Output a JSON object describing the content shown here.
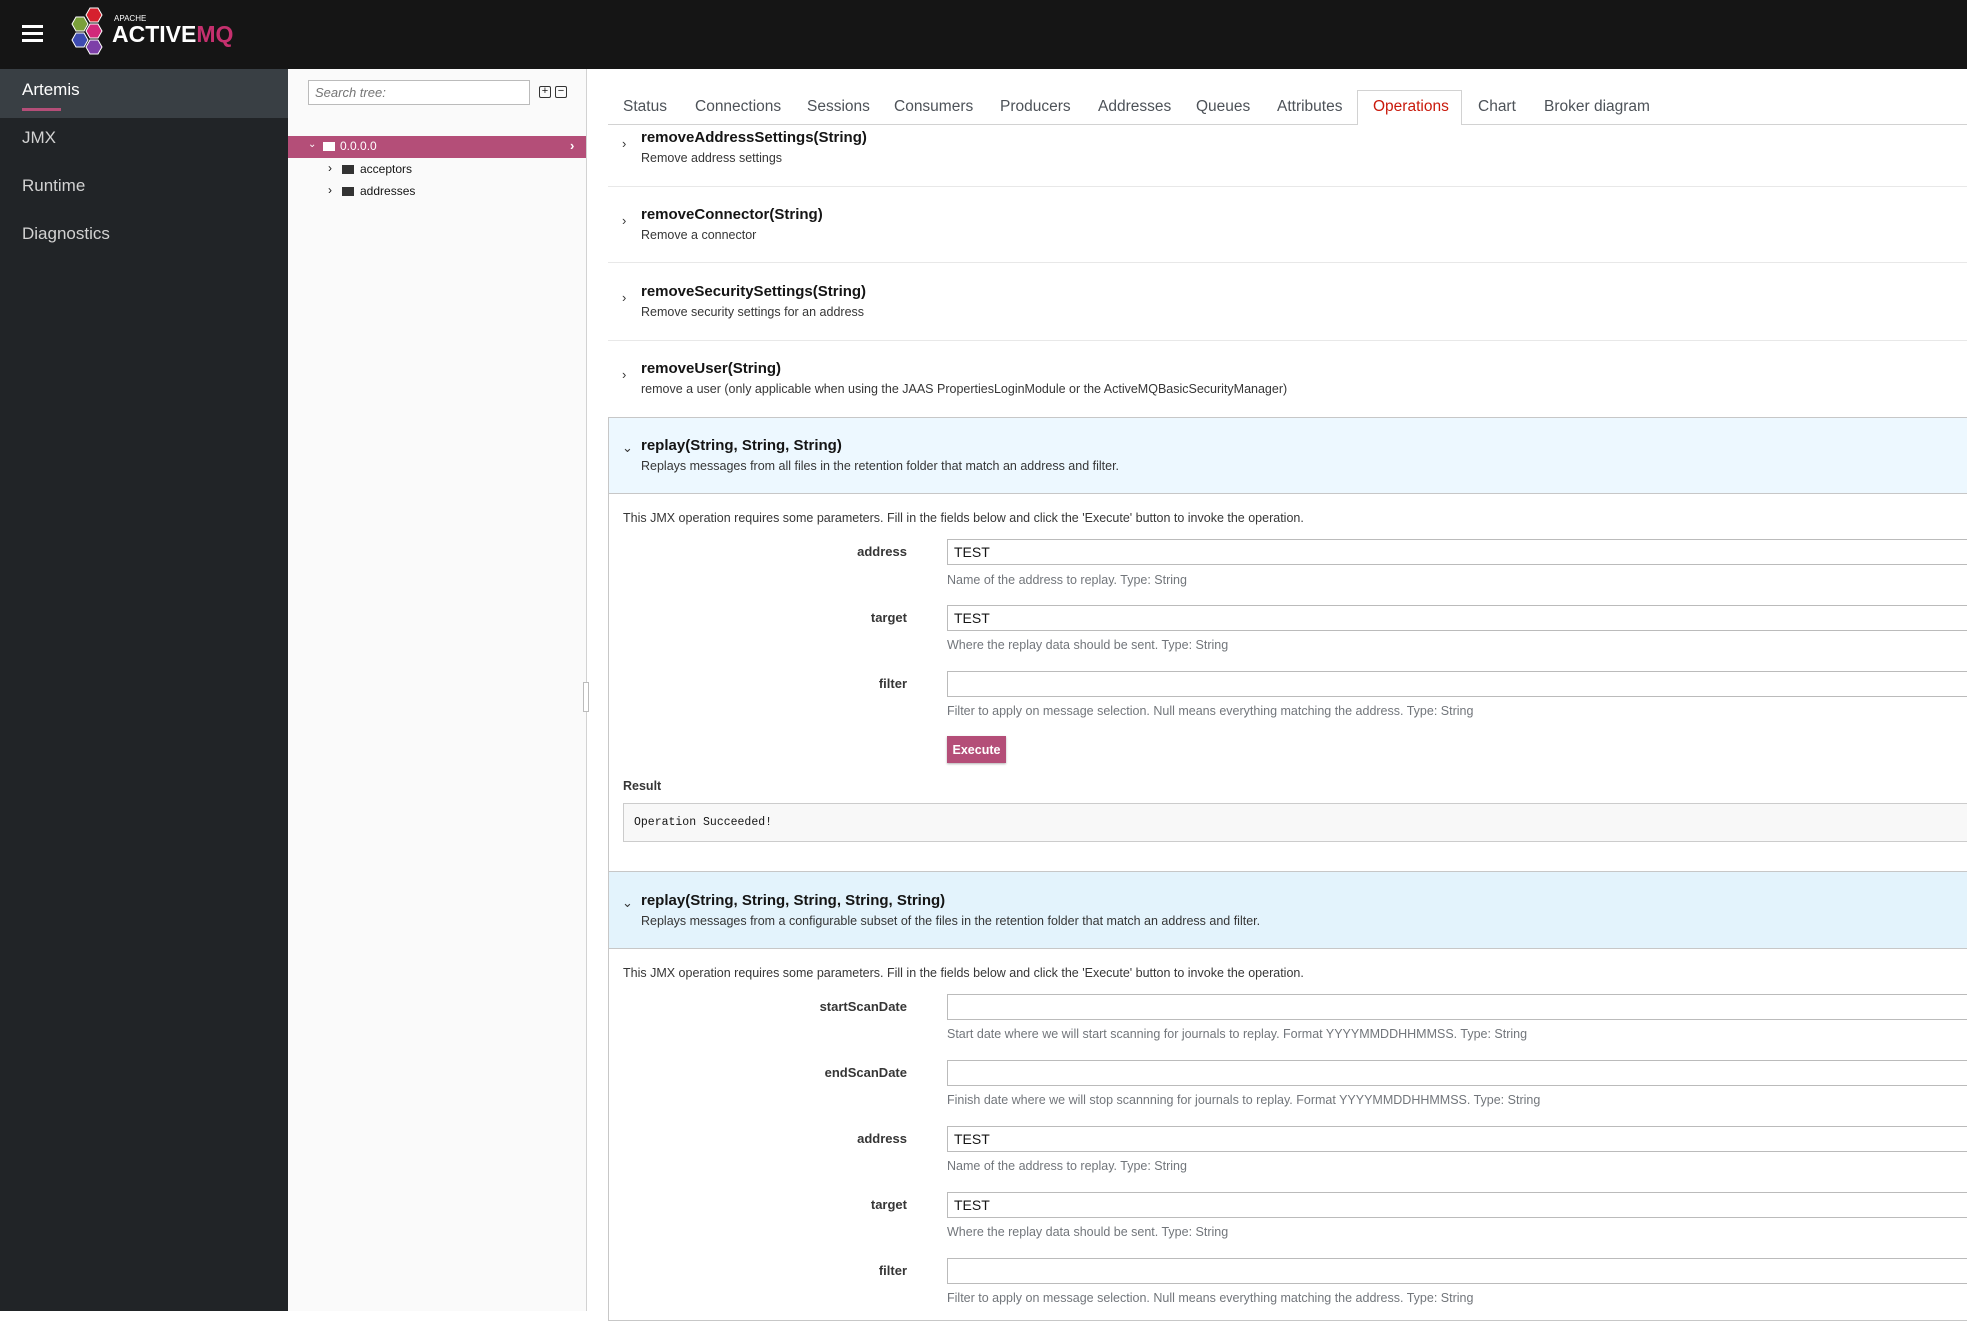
{
  "header": {
    "logo_small": "APACHE",
    "logo_main": "ACTIVE",
    "logo_accent": "MQ"
  },
  "sidebar": {
    "items": [
      {
        "label": "Artemis",
        "active": true
      },
      {
        "label": "JMX"
      },
      {
        "label": "Runtime"
      },
      {
        "label": "Diagnostics"
      }
    ]
  },
  "tree": {
    "search_placeholder": "Search tree:",
    "nodes": [
      {
        "label": "0.0.0.0",
        "selected": true
      },
      {
        "label": "acceptors"
      },
      {
        "label": "addresses"
      }
    ]
  },
  "tabs": [
    "Status",
    "Connections",
    "Sessions",
    "Consumers",
    "Producers",
    "Addresses",
    "Queues",
    "Attributes",
    "Operations",
    "Chart",
    "Broker diagram"
  ],
  "active_tab": "Operations",
  "colors": {
    "accent": "#b44e78",
    "tab_active": "#c9190b",
    "expanded_header": "#edf8ff"
  },
  "operations": [
    {
      "name": "removeAddressSettings(String)",
      "desc": "Remove address settings"
    },
    {
      "name": "removeConnector(String)",
      "desc": "Remove a connector"
    },
    {
      "name": "removeSecuritySettings(String)",
      "desc": "Remove security settings for an address"
    },
    {
      "name": "removeUser(String)",
      "desc": "remove a user (only applicable when using the JAAS PropertiesLoginModule or the ActiveMQBasicSecurityManager)"
    }
  ],
  "replay1": {
    "name": "replay(String, String, String)",
    "desc": "Replays messages from all files in the retention folder that match an address and filter.",
    "intro": "This JMX operation requires some parameters. Fill in the fields below and click the 'Execute' button to invoke the operation.",
    "params": [
      {
        "label": "address",
        "value": "TEST",
        "help": "Name of the address to replay. Type: String"
      },
      {
        "label": "target",
        "value": "TEST",
        "help": "Where the replay data should be sent. Type: String"
      },
      {
        "label": "filter",
        "value": "",
        "help": "Filter to apply on message selection. Null means everything matching the address. Type: String"
      }
    ],
    "execute": "Execute",
    "result_label": "Result",
    "result": "Operation Succeeded!"
  },
  "replay2": {
    "name": "replay(String, String, String, String, String)",
    "desc": "Replays messages from a configurable subset of the files in the retention folder that match an address and filter.",
    "intro": "This JMX operation requires some parameters. Fill in the fields below and click the 'Execute' button to invoke the operation.",
    "params": [
      {
        "label": "startScanDate",
        "value": "",
        "help": "Start date where we will start scanning for journals to replay. Format YYYYMMDDHHMMSS. Type: String"
      },
      {
        "label": "endScanDate",
        "value": "",
        "help": "Finish date where we will stop scannning for journals to replay. Format YYYYMMDDHHMMSS. Type: String"
      },
      {
        "label": "address",
        "value": "TEST",
        "help": "Name of the address to replay. Type: String"
      },
      {
        "label": "target",
        "value": "TEST",
        "help": "Where the replay data should be sent. Type: String"
      },
      {
        "label": "filter",
        "value": "",
        "help": "Filter to apply on message selection. Null means everything matching the address. Type: String"
      }
    ]
  }
}
